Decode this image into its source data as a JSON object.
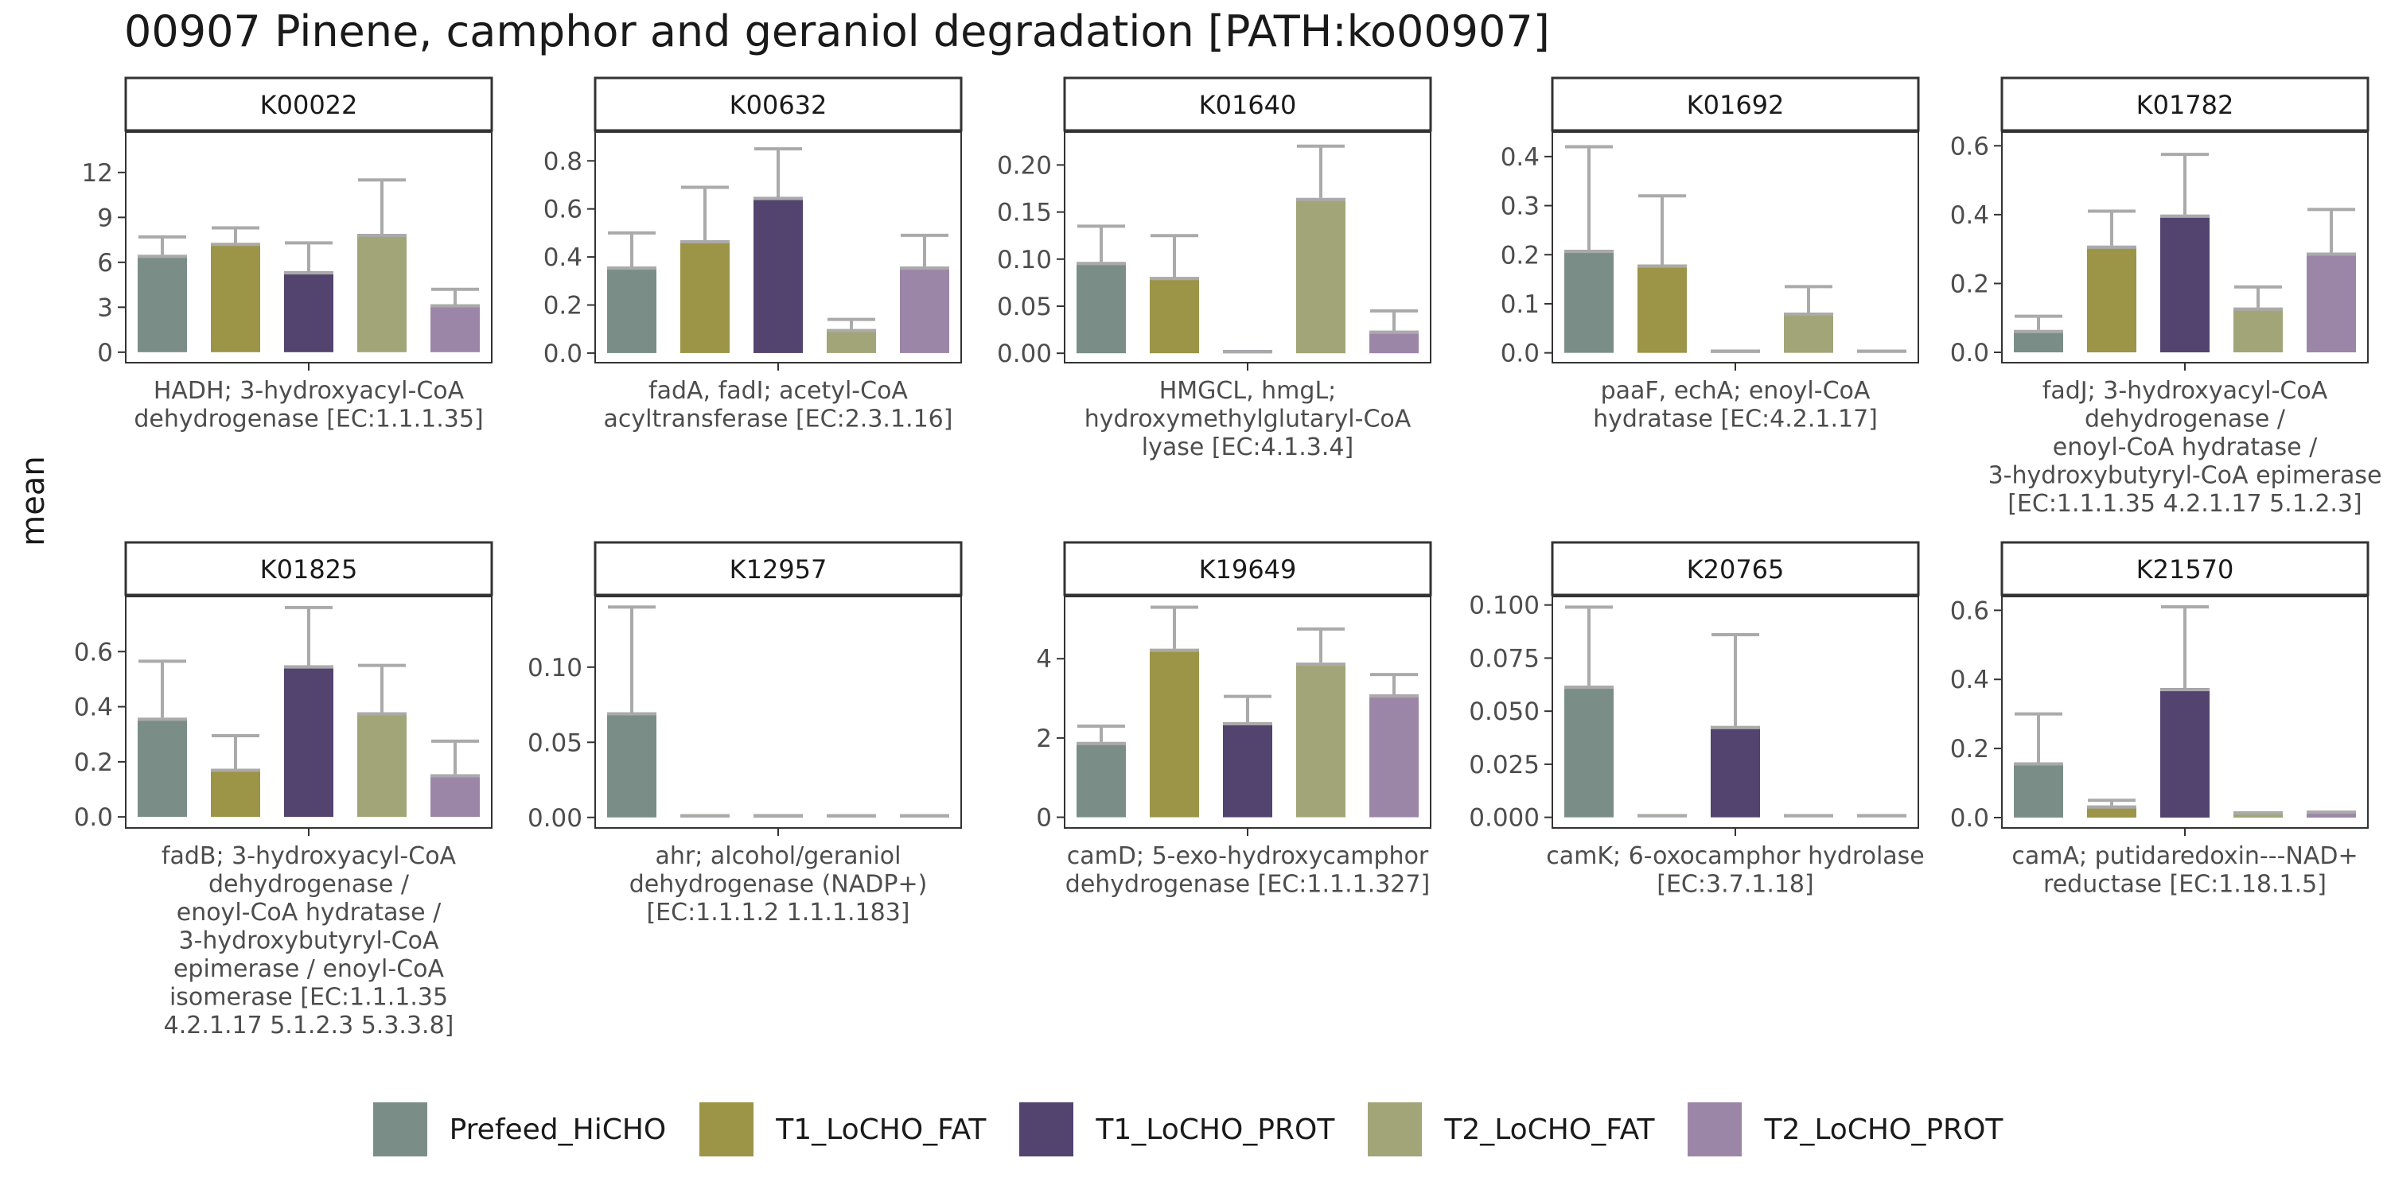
{
  "title": "00907 Pinene, camphor and geraniol degradation [PATH:ko00907]",
  "y_axis_title": "mean",
  "colors": {
    "Prefeed_HiCHO": "#7a8e87",
    "T1_LoCHO_FAT": "#9c9446",
    "T1_LoCHO_PROT": "#52436f",
    "T2_LoCHO_FAT": "#a2a577",
    "T2_LoCHO_PROT": "#9c86a8",
    "error_bar": "#aaaaaa",
    "strip_fill": "#ffffff",
    "panel_border": "#333333"
  },
  "legend": {
    "items": [
      "Prefeed_HiCHO",
      "T1_LoCHO_FAT",
      "T1_LoCHO_PROT",
      "T2_LoCHO_FAT",
      "T2_LoCHO_PROT"
    ]
  },
  "chart_data": [
    {
      "type": "bar",
      "facet": "K00022",
      "categories": [
        "Prefeed_HiCHO",
        "T1_LoCHO_FAT",
        "T1_LoCHO_PROT",
        "T2_LoCHO_FAT",
        "T2_LoCHO_PROT"
      ],
      "values": [
        6.5,
        7.3,
        5.4,
        7.9,
        3.2
      ],
      "error_upper": [
        7.7,
        8.3,
        7.3,
        11.5,
        4.2
      ],
      "yticks": [
        "0",
        "3",
        "6",
        "9",
        "12"
      ],
      "ylim": [
        -0.7,
        14.7
      ],
      "xlabel": "HADH; 3-hydroxyacyl-CoA\ndehydrogenase [EC:1.1.1.35]"
    },
    {
      "type": "bar",
      "facet": "K00632",
      "categories": [
        "Prefeed_HiCHO",
        "T1_LoCHO_FAT",
        "T1_LoCHO_PROT",
        "T2_LoCHO_FAT",
        "T2_LoCHO_PROT"
      ],
      "values": [
        0.36,
        0.47,
        0.65,
        0.1,
        0.36
      ],
      "error_upper": [
        0.5,
        0.69,
        0.85,
        0.14,
        0.49
      ],
      "yticks": [
        "0.0",
        "0.2",
        "0.4",
        "0.6",
        "0.8"
      ],
      "ylim": [
        -0.04,
        0.92
      ],
      "xlabel": "fadA, fadI; acetyl-CoA\nacyltransferase [EC:2.3.1.16]"
    },
    {
      "type": "bar",
      "facet": "K01640",
      "categories": [
        "Prefeed_HiCHO",
        "T1_LoCHO_FAT",
        "T1_LoCHO_PROT",
        "T2_LoCHO_FAT",
        "T2_LoCHO_PROT"
      ],
      "values": [
        0.097,
        0.081,
        0.0,
        0.165,
        0.024
      ],
      "error_upper": [
        0.135,
        0.125,
        0.0,
        0.22,
        0.045
      ],
      "yticks": [
        "0.00",
        "0.05",
        "0.10",
        "0.15",
        "0.20"
      ],
      "ylim": [
        -0.01,
        0.235
      ],
      "xlabel": "HMGCL, hmgL;\nhydroxymethylglutaryl-CoA\nlyase [EC:4.1.3.4]"
    },
    {
      "type": "bar",
      "facet": "K01692",
      "categories": [
        "Prefeed_HiCHO",
        "T1_LoCHO_FAT",
        "T1_LoCHO_PROT",
        "T2_LoCHO_FAT",
        "T2_LoCHO_PROT"
      ],
      "values": [
        0.21,
        0.18,
        0.0,
        0.082,
        0.0
      ],
      "error_upper": [
        0.42,
        0.32,
        0.0,
        0.135,
        0.0
      ],
      "yticks": [
        "0.0",
        "0.1",
        "0.2",
        "0.3",
        "0.4"
      ],
      "ylim": [
        -0.02,
        0.45
      ],
      "xlabel": "paaF, echA; enoyl-CoA\nhydratase [EC:4.2.1.17]"
    },
    {
      "type": "bar",
      "facet": "K01782",
      "categories": [
        "Prefeed_HiCHO",
        "T1_LoCHO_FAT",
        "T1_LoCHO_PROT",
        "T2_LoCHO_FAT",
        "T2_LoCHO_PROT"
      ],
      "values": [
        0.065,
        0.31,
        0.4,
        0.13,
        0.29
      ],
      "error_upper": [
        0.105,
        0.41,
        0.575,
        0.19,
        0.415
      ],
      "yticks": [
        "0.0",
        "0.2",
        "0.4",
        "0.6"
      ],
      "ylim": [
        -0.03,
        0.64
      ],
      "xlabel": "fadJ; 3-hydroxyacyl-CoA\ndehydrogenase /\nenoyl-CoA hydratase /\n3-hydroxybutyryl-CoA epimerase\n[EC:1.1.1.35 4.2.1.17 5.1.2.3]"
    },
    {
      "type": "bar",
      "facet": "K01825",
      "categories": [
        "Prefeed_HiCHO",
        "T1_LoCHO_FAT",
        "T1_LoCHO_PROT",
        "T2_LoCHO_FAT",
        "T2_LoCHO_PROT"
      ],
      "values": [
        0.36,
        0.175,
        0.55,
        0.38,
        0.155
      ],
      "error_upper": [
        0.565,
        0.295,
        0.76,
        0.55,
        0.275
      ],
      "yticks": [
        "0.0",
        "0.2",
        "0.4",
        "0.6"
      ],
      "ylim": [
        -0.04,
        0.8
      ],
      "xlabel": "fadB; 3-hydroxyacyl-CoA\ndehydrogenase /\nenoyl-CoA hydratase /\n3-hydroxybutyryl-CoA\nepimerase / enoyl-CoA\nisomerase [EC:1.1.1.35\n4.2.1.17 5.1.2.3 5.3.3.8]"
    },
    {
      "type": "bar",
      "facet": "K12957",
      "categories": [
        "Prefeed_HiCHO",
        "T1_LoCHO_FAT",
        "T1_LoCHO_PROT",
        "T2_LoCHO_FAT",
        "T2_LoCHO_PROT"
      ],
      "values": [
        0.07,
        0.0,
        0.0,
        0.0,
        0.0
      ],
      "error_upper": [
        0.14,
        0.0,
        0.0,
        0.0,
        0.0
      ],
      "yticks": [
        "0.00",
        "0.05",
        "0.10"
      ],
      "ylim": [
        -0.007,
        0.147
      ],
      "xlabel": "ahr; alcohol/geraniol\ndehydrogenase (NADP+)\n[EC:1.1.1.2 1.1.1.183]"
    },
    {
      "type": "bar",
      "facet": "K19649",
      "categories": [
        "Prefeed_HiCHO",
        "T1_LoCHO_FAT",
        "T1_LoCHO_PROT",
        "T2_LoCHO_FAT",
        "T2_LoCHO_PROT"
      ],
      "values": [
        1.9,
        4.25,
        2.4,
        3.9,
        3.1
      ],
      "error_upper": [
        2.3,
        5.3,
        3.05,
        4.75,
        3.6
      ],
      "yticks": [
        "0",
        "2",
        "4"
      ],
      "ylim": [
        -0.27,
        5.57
      ],
      "xlabel": "camD; 5-exo-hydroxycamphor\ndehydrogenase [EC:1.1.1.327]"
    },
    {
      "type": "bar",
      "facet": "K20765",
      "categories": [
        "Prefeed_HiCHO",
        "T1_LoCHO_FAT",
        "T1_LoCHO_PROT",
        "T2_LoCHO_FAT",
        "T2_LoCHO_PROT"
      ],
      "values": [
        0.062,
        0.0,
        0.043,
        0.0,
        0.0
      ],
      "error_upper": [
        0.099,
        0.0,
        0.086,
        0.0,
        0.0
      ],
      "yticks": [
        "0.000",
        "0.025",
        "0.050",
        "0.075",
        "0.100"
      ],
      "ylim": [
        -0.005,
        0.104
      ],
      "xlabel": "camK; 6-oxocamphor hydrolase\n[EC:3.7.1.18]"
    },
    {
      "type": "bar",
      "facet": "K21570",
      "categories": [
        "Prefeed_HiCHO",
        "T1_LoCHO_FAT",
        "T1_LoCHO_PROT",
        "T2_LoCHO_FAT",
        "T2_LoCHO_PROT"
      ],
      "values": [
        0.16,
        0.035,
        0.375,
        0.018,
        0.02
      ],
      "error_upper": [
        0.3,
        0.05,
        0.61,
        0.018,
        0.02
      ],
      "yticks": [
        "0.0",
        "0.2",
        "0.4",
        "0.6"
      ],
      "ylim": [
        -0.03,
        0.64
      ],
      "xlabel": "camA; putidaredoxin---NAD+\nreductase [EC:1.18.1.5]"
    }
  ]
}
